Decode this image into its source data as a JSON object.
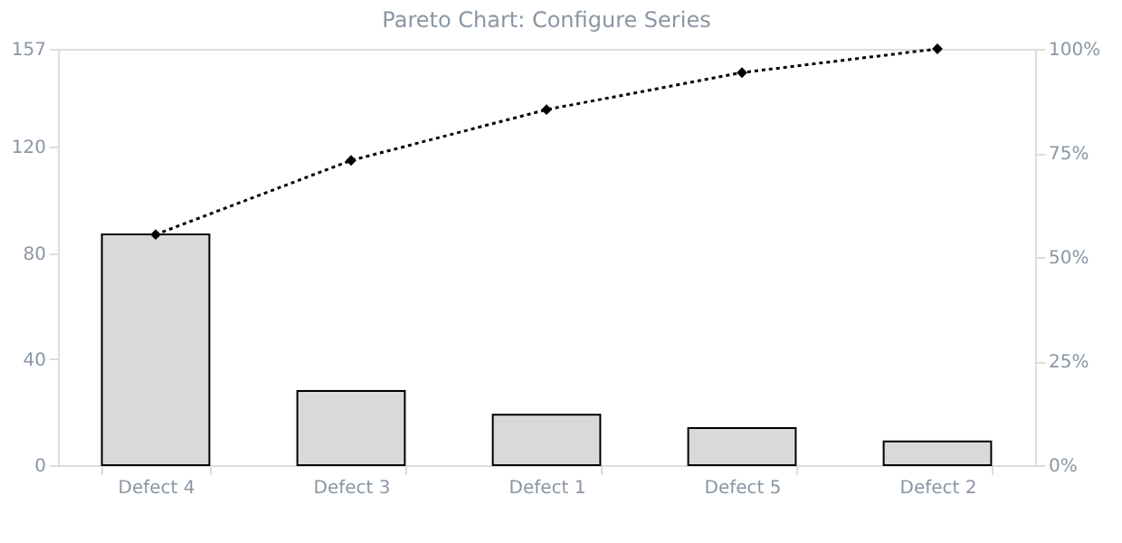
{
  "chart_data": {
    "type": "bar",
    "title": "Pareto Chart: Configure Series",
    "categories": [
      "Defect 4",
      "Defect 3",
      "Defect 1",
      "Defect 5",
      "Defect 2"
    ],
    "series": [
      {
        "color": "#d9d9d9",
        "values": [
          87,
          28,
          19,
          14,
          9
        ]
      },
      {
        "type": "line",
        "axis": "y2",
        "color": "#000000",
        "marker": "diamond",
        "line_style": "dotted",
        "values": [
          55.4,
          73.2,
          85.4,
          94.3,
          100
        ]
      }
    ],
    "ylim": [
      0,
      157
    ],
    "yticks": [
      0,
      40,
      80,
      120,
      157
    ],
    "y2lim": [
      0,
      100
    ],
    "y2ticks": [
      {
        "value": 0,
        "label": "0%"
      },
      {
        "value": 25,
        "label": "25%"
      },
      {
        "value": 50,
        "label": "50%"
      },
      {
        "value": 75,
        "label": "75%"
      },
      {
        "value": 100,
        "label": "100%"
      }
    ],
    "grid": false
  }
}
